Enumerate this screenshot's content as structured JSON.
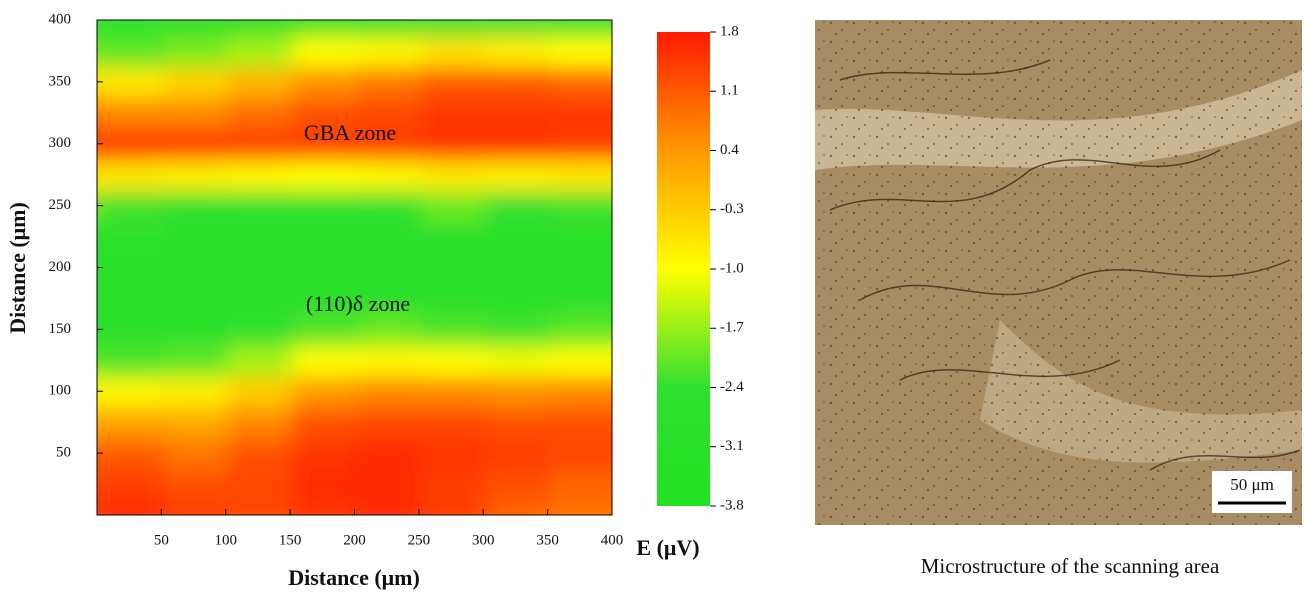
{
  "chart_data": {
    "type": "heatmap",
    "xlabel": "Distance (μm)",
    "ylabel": "Distance (μm)",
    "colorbar_label": "E (μV)",
    "annotations": [
      "GBA zone",
      "(110)δ zone"
    ],
    "x": [
      0,
      50,
      100,
      150,
      200,
      250,
      300,
      350,
      400
    ],
    "y": [
      0,
      25,
      50,
      75,
      100,
      125,
      150,
      175,
      200,
      225,
      250,
      275,
      300,
      325,
      350,
      375,
      400
    ],
    "z": [
      [
        1.5,
        1.6,
        1.4,
        1.3,
        1.5,
        1.6,
        1.4,
        1.0,
        0.8
      ],
      [
        1.3,
        1.4,
        1.2,
        1.3,
        1.6,
        1.6,
        1.4,
        1.2,
        1.0
      ],
      [
        1.0,
        1.1,
        0.8,
        1.2,
        1.5,
        1.6,
        1.5,
        1.4,
        1.3
      ],
      [
        0.2,
        0.3,
        0.2,
        0.6,
        1.2,
        1.3,
        1.3,
        1.2,
        1.2
      ],
      [
        -0.9,
        -0.9,
        -0.8,
        -0.3,
        0.4,
        0.6,
        0.6,
        0.5,
        0.6
      ],
      [
        -2.2,
        -2.2,
        -2.1,
        -1.6,
        -1.0,
        -0.9,
        -1.0,
        -1.1,
        -1.0
      ],
      [
        -2.8,
        -2.8,
        -2.8,
        -2.6,
        -2.2,
        -2.0,
        -2.2,
        -2.3,
        -2.1
      ],
      [
        -3.0,
        -3.0,
        -3.0,
        -3.0,
        -3.0,
        -3.0,
        -3.0,
        -3.0,
        -3.0
      ],
      [
        -2.8,
        -3.0,
        -3.0,
        -3.0,
        -3.0,
        -3.0,
        -3.0,
        -3.0,
        -3.0
      ],
      [
        -2.4,
        -2.6,
        -2.9,
        -3.0,
        -3.0,
        -3.0,
        -3.0,
        -3.0,
        -3.0
      ],
      [
        -2.0,
        -2.3,
        -2.5,
        -2.6,
        -2.6,
        -2.5,
        -2.0,
        -2.4,
        -2.3
      ],
      [
        -0.6,
        -0.7,
        -0.8,
        -0.9,
        -1.0,
        -0.9,
        -0.7,
        -0.8,
        -0.7
      ],
      [
        1.4,
        1.5,
        1.5,
        1.4,
        1.4,
        1.4,
        1.5,
        1.5,
        1.4
      ],
      [
        0.8,
        0.6,
        0.6,
        0.9,
        1.2,
        1.3,
        1.5,
        1.5,
        1.5
      ],
      [
        -0.5,
        -0.7,
        -0.4,
        0.0,
        0.5,
        0.8,
        1.1,
        1.1,
        1.0
      ],
      [
        -2.0,
        -2.1,
        -1.9,
        -1.6,
        -1.0,
        -0.9,
        -0.6,
        -0.8,
        -1.0
      ],
      [
        -3.0,
        -3.0,
        -3.0,
        -3.0,
        -2.8,
        -3.0,
        -2.6,
        -2.4,
        -2.5
      ]
    ],
    "xlim": [
      0,
      400
    ],
    "xticks": [
      50,
      100,
      150,
      200,
      250,
      300,
      350,
      400
    ],
    "ylim": [
      0,
      400
    ],
    "yticks": [
      50,
      100,
      150,
      200,
      250,
      300,
      350,
      400
    ],
    "clim": [
      -3.8,
      1.8
    ],
    "cticks": [
      1.8,
      1.1,
      0.4,
      -0.3,
      {
        "value": -1,
        "label": "-1.0"
      },
      -1.7,
      -2.4,
      -3.1,
      -3.8
    ],
    "colormap": [
      "#22e022",
      "#30e030",
      "#ffff00",
      "#ff9900",
      "#ff1a00"
    ]
  },
  "micrograph": {
    "scale_bar": "50 μm",
    "caption": "Microstructure of the scanning area"
  }
}
